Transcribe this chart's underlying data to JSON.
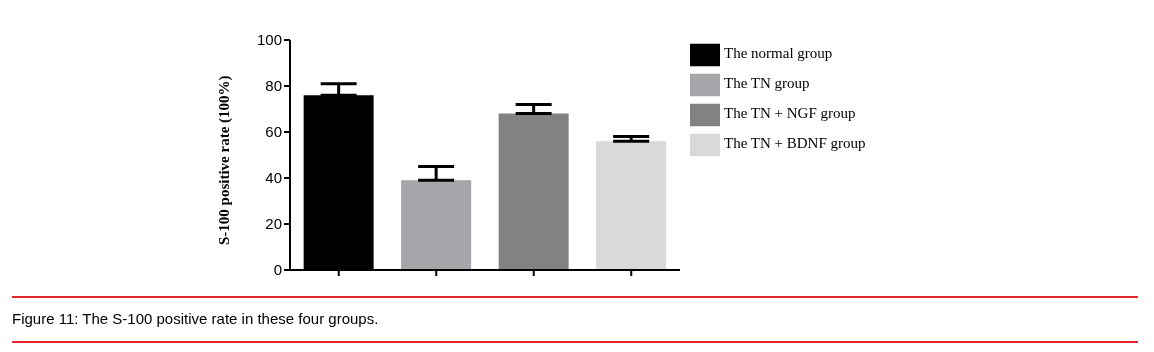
{
  "chart_data": {
    "type": "bar",
    "ylabel": "S-100 positive rate (100%)",
    "categories": [
      null,
      null,
      null,
      null
    ],
    "series": [
      {
        "name": "The normal group",
        "color": "#000000",
        "values": [
          76,
          null,
          null,
          null
        ],
        "errors": [
          [
            76,
            81
          ],
          null,
          null,
          null
        ]
      },
      {
        "name": "The TN group",
        "color": "#a5a5aa",
        "values": [
          null,
          39,
          null,
          null
        ],
        "errors": [
          null,
          [
            39,
            45
          ],
          null,
          null
        ]
      },
      {
        "name": "The TN + NGF group",
        "color": "#828282",
        "values": [
          null,
          null,
          68,
          null
        ],
        "errors": [
          null,
          null,
          [
            68,
            72
          ],
          null
        ]
      },
      {
        "name": "The TN + BDNF group",
        "color": "#d9d9d9",
        "values": [
          null,
          null,
          null,
          56
        ],
        "errors": [
          null,
          null,
          null,
          [
            56,
            58
          ]
        ]
      }
    ],
    "ylim": [
      0,
      100
    ],
    "yticks": [
      0,
      20,
      40,
      60,
      80,
      100
    ],
    "grid": false,
    "legend": "top right",
    "annotations": [
      "Figure 11: The S-100 positive rate in these four groups."
    ]
  }
}
